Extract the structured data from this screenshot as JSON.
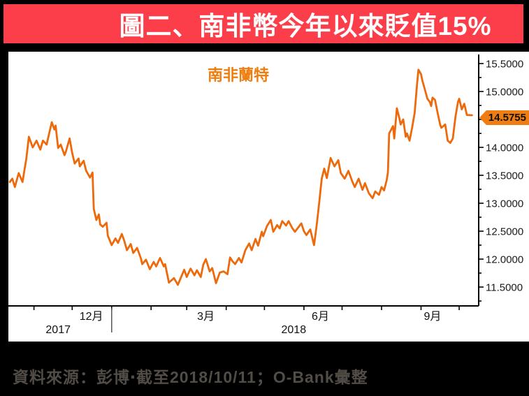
{
  "title_bar": {
    "text": "圖二、南非幣今年以來貶值15%",
    "bg_color": "#fb3e4a",
    "text_color": "#ffffff"
  },
  "footer": {
    "source_text": "資料來源：彭博‧截至2018/10/11；O-Bank彙整",
    "text_color": "#514c45"
  },
  "chart_data": {
    "type": "line",
    "title": "南非蘭特",
    "legend_color": "#ef7d0e",
    "line_color": "#ed6a0c",
    "tag_bg": "#ef7d12",
    "last_value": 14.5755,
    "last_value_label": "14.5755",
    "ylim": [
      11.16,
      15.72
    ],
    "grid": false,
    "legend_position": "top-center-inside",
    "y_ticks": [
      {
        "v": 15.5,
        "label": "15.5000"
      },
      {
        "v": 15.0,
        "label": "15.0000"
      },
      {
        "v": 14.5,
        "label": "14.5000"
      },
      {
        "v": 14.0,
        "label": "14.0000"
      },
      {
        "v": 13.5,
        "label": "13.5000"
      },
      {
        "v": 13.0,
        "label": "13.0000"
      },
      {
        "v": 12.5,
        "label": "12.5000"
      },
      {
        "v": 12.0,
        "label": "12.0000"
      },
      {
        "v": 11.5,
        "label": "11.5000"
      }
    ],
    "x_axis": {
      "start_date": "2017-10-13",
      "end_date": "2018-10-11",
      "month_ticks": [
        "2017-11-01",
        "2017-12-01",
        "2018-01-01",
        "2018-02-01",
        "2018-03-01",
        "2018-04-01",
        "2018-05-01",
        "2018-06-01",
        "2018-07-01",
        "2018-08-01",
        "2018-09-01",
        "2018-10-01"
      ],
      "month_labels": [
        {
          "label": "12月",
          "anchor": "2017-12-16"
        },
        {
          "label": "3月",
          "anchor": "2018-03-16"
        },
        {
          "label": "6月",
          "anchor": "2018-06-14"
        },
        {
          "label": "9月",
          "anchor": "2018-09-10"
        }
      ],
      "year_labels": [
        {
          "label": "2017",
          "anchor": "2017-11-20"
        },
        {
          "label": "2018",
          "anchor": "2018-05-24"
        }
      ],
      "year_separator": "2018-01-01"
    },
    "points": [
      [
        "2017-10-13",
        13.38
      ],
      [
        "2017-10-15",
        13.44
      ],
      [
        "2017-10-17",
        13.29
      ],
      [
        "2017-10-20",
        13.54
      ],
      [
        "2017-10-23",
        13.38
      ],
      [
        "2017-10-26",
        13.8
      ],
      [
        "2017-10-28",
        14.19
      ],
      [
        "2017-10-31",
        14.0
      ],
      [
        "2017-11-03",
        14.12
      ],
      [
        "2017-11-06",
        13.96
      ],
      [
        "2017-11-08",
        14.12
      ],
      [
        "2017-11-11",
        14.05
      ],
      [
        "2017-11-12",
        14.16
      ],
      [
        "2017-11-15",
        14.45
      ],
      [
        "2017-11-17",
        14.32
      ],
      [
        "2017-11-18",
        14.39
      ],
      [
        "2017-11-20",
        13.99
      ],
      [
        "2017-11-22",
        14.05
      ],
      [
        "2017-11-25",
        13.86
      ],
      [
        "2017-11-26",
        13.92
      ],
      [
        "2017-11-29",
        14.16
      ],
      [
        "2017-12-01",
        13.9
      ],
      [
        "2017-12-03",
        13.71
      ],
      [
        "2017-12-06",
        13.8
      ],
      [
        "2017-12-07",
        13.66
      ],
      [
        "2017-12-10",
        13.76
      ],
      [
        "2017-12-12",
        13.58
      ],
      [
        "2017-12-15",
        13.46
      ],
      [
        "2017-12-17",
        13.55
      ],
      [
        "2017-12-18",
        12.9
      ],
      [
        "2017-12-20",
        12.7
      ],
      [
        "2017-12-22",
        12.8
      ],
      [
        "2017-12-23",
        12.62
      ],
      [
        "2017-12-25",
        12.58
      ],
      [
        "2017-12-28",
        12.65
      ],
      [
        "2017-12-29",
        12.42
      ],
      [
        "2018-01-01",
        12.25
      ],
      [
        "2018-01-04",
        12.37
      ],
      [
        "2018-01-06",
        12.29
      ],
      [
        "2018-01-09",
        12.45
      ],
      [
        "2018-01-11",
        12.32
      ],
      [
        "2018-01-13",
        12.16
      ],
      [
        "2018-01-16",
        12.27
      ],
      [
        "2018-01-18",
        12.11
      ],
      [
        "2018-01-21",
        12.2
      ],
      [
        "2018-01-24",
        12.01
      ],
      [
        "2018-01-25",
        11.91
      ],
      [
        "2018-01-28",
        11.99
      ],
      [
        "2018-01-31",
        11.82
      ],
      [
        "2018-02-03",
        11.95
      ],
      [
        "2018-02-05",
        11.87
      ],
      [
        "2018-02-08",
        12.02
      ],
      [
        "2018-02-11",
        11.87
      ],
      [
        "2018-02-12",
        11.91
      ],
      [
        "2018-02-15",
        11.58
      ],
      [
        "2018-02-19",
        11.66
      ],
      [
        "2018-02-22",
        11.54
      ],
      [
        "2018-02-27",
        11.81
      ],
      [
        "2018-03-01",
        11.68
      ],
      [
        "2018-03-04",
        11.83
      ],
      [
        "2018-03-07",
        11.71
      ],
      [
        "2018-03-09",
        11.8
      ],
      [
        "2018-03-12",
        11.68
      ],
      [
        "2018-03-14",
        11.9
      ],
      [
        "2018-03-16",
        12.0
      ],
      [
        "2018-03-19",
        11.78
      ],
      [
        "2018-03-21",
        11.84
      ],
      [
        "2018-03-24",
        11.57
      ],
      [
        "2018-03-27",
        11.76
      ],
      [
        "2018-03-30",
        11.78
      ],
      [
        "2018-04-02",
        11.73
      ],
      [
        "2018-04-04",
        12.03
      ],
      [
        "2018-04-06",
        11.96
      ],
      [
        "2018-04-08",
        11.91
      ],
      [
        "2018-04-11",
        12.02
      ],
      [
        "2018-04-13",
        11.94
      ],
      [
        "2018-04-16",
        12.16
      ],
      [
        "2018-04-19",
        12.28
      ],
      [
        "2018-04-21",
        12.16
      ],
      [
        "2018-04-24",
        12.36
      ],
      [
        "2018-04-26",
        12.24
      ],
      [
        "2018-04-29",
        12.49
      ],
      [
        "2018-04-30",
        12.41
      ],
      [
        "2018-05-03",
        12.59
      ],
      [
        "2018-05-06",
        12.7
      ],
      [
        "2018-05-08",
        12.49
      ],
      [
        "2018-05-11",
        12.61
      ],
      [
        "2018-05-13",
        12.55
      ],
      [
        "2018-05-15",
        12.68
      ],
      [
        "2018-05-18",
        12.6
      ],
      [
        "2018-05-20",
        12.68
      ],
      [
        "2018-05-23",
        12.55
      ],
      [
        "2018-05-25",
        12.49
      ],
      [
        "2018-05-28",
        12.58
      ],
      [
        "2018-05-30",
        12.64
      ],
      [
        "2018-06-01",
        12.5
      ],
      [
        "2018-06-03",
        12.43
      ],
      [
        "2018-06-06",
        12.53
      ],
      [
        "2018-06-09",
        12.25
      ],
      [
        "2018-06-11",
        12.6
      ],
      [
        "2018-06-13",
        13.0
      ],
      [
        "2018-06-15",
        13.44
      ],
      [
        "2018-06-17",
        13.62
      ],
      [
        "2018-06-19",
        13.45
      ],
      [
        "2018-06-22",
        13.81
      ],
      [
        "2018-06-25",
        13.66
      ],
      [
        "2018-06-28",
        13.77
      ],
      [
        "2018-06-30",
        13.54
      ],
      [
        "2018-07-03",
        13.44
      ],
      [
        "2018-07-06",
        13.58
      ],
      [
        "2018-07-09",
        13.39
      ],
      [
        "2018-07-11",
        13.29
      ],
      [
        "2018-07-14",
        13.44
      ],
      [
        "2018-07-17",
        13.24
      ],
      [
        "2018-07-19",
        13.36
      ],
      [
        "2018-07-22",
        13.18
      ],
      [
        "2018-07-25",
        13.09
      ],
      [
        "2018-07-27",
        13.21
      ],
      [
        "2018-07-30",
        13.15
      ],
      [
        "2018-08-01",
        13.29
      ],
      [
        "2018-08-03",
        13.23
      ],
      [
        "2018-08-05",
        13.41
      ],
      [
        "2018-08-06",
        13.55
      ],
      [
        "2018-08-07",
        14.25
      ],
      [
        "2018-08-10",
        14.38
      ],
      [
        "2018-08-11",
        14.16
      ],
      [
        "2018-08-13",
        14.7
      ],
      [
        "2018-08-15",
        14.52
      ],
      [
        "2018-08-16",
        14.41
      ],
      [
        "2018-08-18",
        14.5
      ],
      [
        "2018-08-20",
        14.19
      ],
      [
        "2018-08-21",
        14.25
      ],
      [
        "2018-08-23",
        14.12
      ],
      [
        "2018-08-25",
        14.35
      ],
      [
        "2018-08-27",
        14.62
      ],
      [
        "2018-08-29",
        15.16
      ],
      [
        "2018-08-30",
        15.39
      ],
      [
        "2018-09-01",
        15.31
      ],
      [
        "2018-09-02",
        15.2
      ],
      [
        "2018-09-04",
        15.04
      ],
      [
        "2018-09-06",
        14.87
      ],
      [
        "2018-09-08",
        14.81
      ],
      [
        "2018-09-09",
        14.74
      ],
      [
        "2018-09-10",
        14.89
      ],
      [
        "2018-09-12",
        14.85
      ],
      [
        "2018-09-14",
        14.62
      ],
      [
        "2018-09-16",
        14.41
      ],
      [
        "2018-09-17",
        14.35
      ],
      [
        "2018-09-20",
        14.41
      ],
      [
        "2018-09-22",
        14.12
      ],
      [
        "2018-09-24",
        14.08
      ],
      [
        "2018-09-26",
        14.16
      ],
      [
        "2018-09-28",
        14.54
      ],
      [
        "2018-09-30",
        14.81
      ],
      [
        "2018-10-01",
        14.87
      ],
      [
        "2018-10-03",
        14.68
      ],
      [
        "2018-10-05",
        14.78
      ],
      [
        "2018-10-07",
        14.58
      ],
      [
        "2018-10-11",
        14.5755
      ]
    ]
  }
}
